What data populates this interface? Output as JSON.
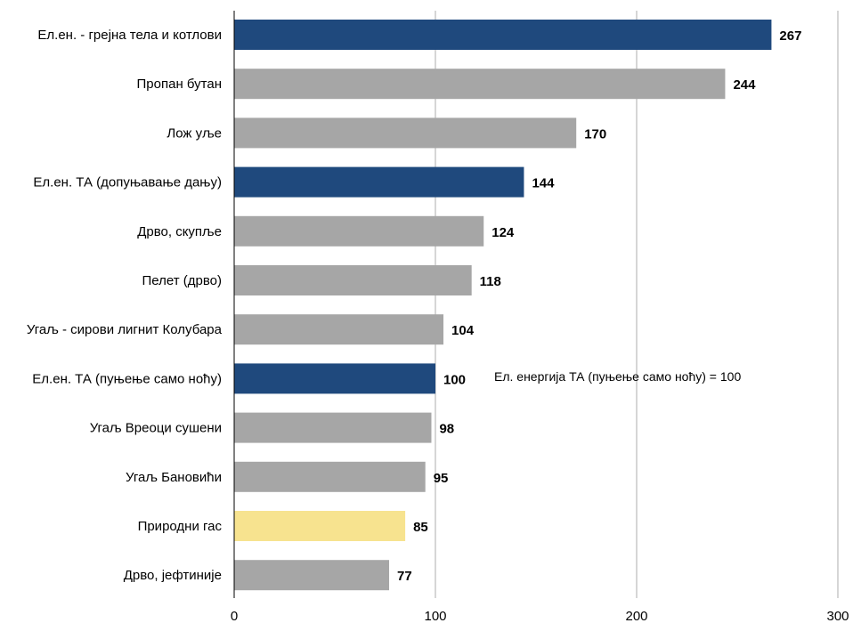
{
  "chart_data": {
    "type": "bar",
    "orientation": "horizontal",
    "categories": [
      "Ел.ен. - грејна тела и котлови",
      "Пропан бутан",
      "Лож уље",
      "Ел.ен. ТА (допуњавање дању)",
      "Дрво, скупље",
      "Пелет (дрво)",
      "Угаљ - сирови лигнит Колубара",
      "Ел.ен. ТА (пуњење само ноћу)",
      "Угаљ Вреоци сушени",
      "Угаљ Бановићи",
      "Природни гас",
      "Дрво, јефтиније"
    ],
    "values": [
      267,
      244,
      170,
      144,
      124,
      118,
      104,
      100,
      98,
      95,
      85,
      77
    ],
    "colors": [
      "#1f497d",
      "#a6a6a6",
      "#a6a6a6",
      "#1f497d",
      "#a6a6a6",
      "#a6a6a6",
      "#a6a6a6",
      "#1f497d",
      "#a6a6a6",
      "#a6a6a6",
      "#f7e38f",
      "#a6a6a6"
    ],
    "xlim": [
      0,
      300
    ],
    "xticks": [
      0,
      100,
      200,
      300
    ],
    "grid": "vertical",
    "annotation": "Ел. енергија ТА (пуњење само ноћу) = 100",
    "title": "",
    "xlabel": "",
    "ylabel": ""
  }
}
